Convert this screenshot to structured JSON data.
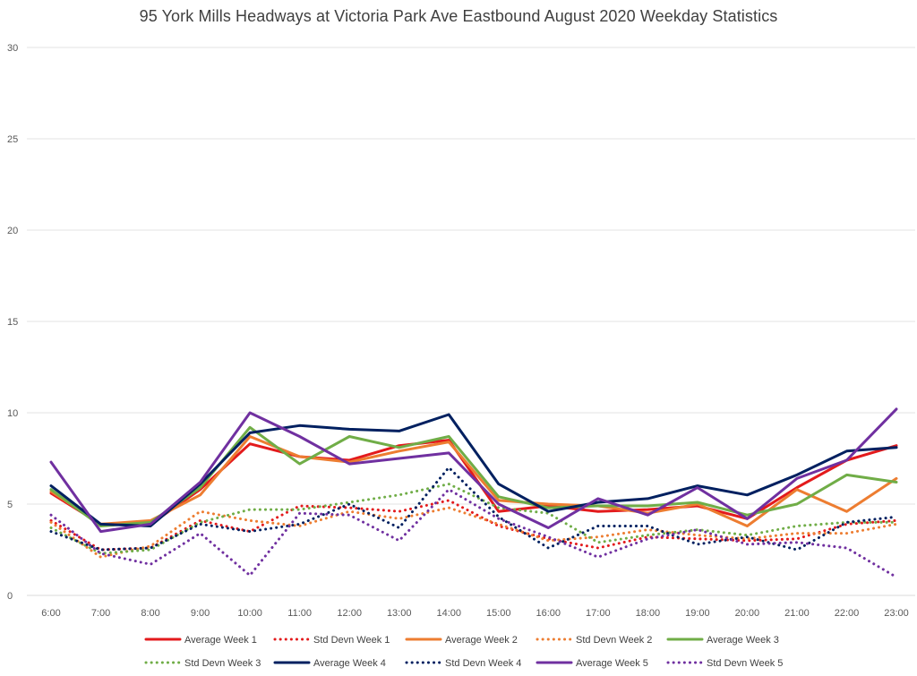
{
  "chart_data": {
    "type": "line",
    "title": "95 York Mills Headways at Victoria Park Ave Eastbound August 2020 Weekday Statistics",
    "xlabel": "",
    "ylabel": "",
    "ylim": [
      0,
      30
    ],
    "yticks": [
      0,
      5,
      10,
      15,
      20,
      25,
      30
    ],
    "grid": "horizontal",
    "legend_position": "bottom",
    "categories": [
      "6:00",
      "7:00",
      "8:00",
      "9:00",
      "10:00",
      "11:00",
      "12:00",
      "13:00",
      "14:00",
      "15:00",
      "16:00",
      "17:00",
      "18:00",
      "19:00",
      "20:00",
      "21:00",
      "22:00",
      "23:00"
    ],
    "series": [
      {
        "name": "Average Week 1",
        "color": "#e31a1c",
        "style": "solid",
        "values": [
          5.6,
          3.9,
          3.9,
          5.8,
          8.3,
          7.6,
          7.4,
          8.2,
          8.5,
          4.6,
          4.9,
          4.6,
          4.7,
          4.9,
          4.2,
          5.9,
          7.4,
          8.2
        ]
      },
      {
        "name": "Std Devn Week 1",
        "color": "#e31a1c",
        "style": "dotted",
        "values": [
          4.1,
          2.5,
          2.6,
          4.1,
          3.5,
          4.9,
          4.8,
          4.6,
          5.2,
          3.8,
          3.1,
          2.6,
          3.2,
          3.1,
          3.0,
          3.1,
          3.9,
          4.1
        ]
      },
      {
        "name": "Average Week 2",
        "color": "#ed7d31",
        "style": "solid",
        "values": [
          5.7,
          3.9,
          4.1,
          5.5,
          8.7,
          7.6,
          7.3,
          7.9,
          8.4,
          5.2,
          5.0,
          4.9,
          4.5,
          5.0,
          3.8,
          5.8,
          4.6,
          6.4
        ]
      },
      {
        "name": "Std Devn Week 2",
        "color": "#ed7d31",
        "style": "dotted",
        "values": [
          4.0,
          2.1,
          2.7,
          4.6,
          4.1,
          3.8,
          4.6,
          4.2,
          4.8,
          3.9,
          3.0,
          3.2,
          3.6,
          3.3,
          3.1,
          3.4,
          3.4,
          3.9
        ]
      },
      {
        "name": "Average Week 3",
        "color": "#70ad47",
        "style": "solid",
        "values": [
          5.8,
          3.8,
          4.0,
          5.9,
          9.2,
          7.2,
          8.7,
          8.1,
          8.7,
          5.4,
          4.8,
          4.9,
          4.9,
          5.1,
          4.4,
          5.0,
          6.6,
          6.2
        ]
      },
      {
        "name": "Std Devn Week 3",
        "color": "#70ad47",
        "style": "dotted",
        "values": [
          3.7,
          2.3,
          2.5,
          4.0,
          4.7,
          4.7,
          5.1,
          5.5,
          6.1,
          4.8,
          4.5,
          2.9,
          3.3,
          3.6,
          3.3,
          3.8,
          4.0,
          4.0
        ]
      },
      {
        "name": "Average Week 4",
        "color": "#002060",
        "style": "solid",
        "values": [
          6.0,
          3.9,
          3.8,
          6.1,
          8.9,
          9.3,
          9.1,
          9.0,
          9.9,
          6.1,
          4.6,
          5.1,
          5.3,
          6.0,
          5.5,
          6.6,
          7.9,
          8.1
        ]
      },
      {
        "name": "Std Devn Week 4",
        "color": "#002060",
        "style": "dotted",
        "values": [
          3.5,
          2.5,
          2.6,
          3.9,
          3.5,
          3.9,
          5.0,
          3.7,
          7.0,
          4.3,
          2.6,
          3.8,
          3.8,
          2.8,
          3.2,
          2.5,
          4.0,
          4.3
        ]
      },
      {
        "name": "Average Week 5",
        "color": "#7030a0",
        "style": "solid",
        "values": [
          7.3,
          3.5,
          3.9,
          6.2,
          10.0,
          8.7,
          7.2,
          7.5,
          7.8,
          5.0,
          3.7,
          5.3,
          4.4,
          5.9,
          4.2,
          6.4,
          7.4,
          10.2
        ]
      },
      {
        "name": "Std Devn Week 5",
        "color": "#7030a0",
        "style": "dotted",
        "values": [
          4.4,
          2.3,
          1.7,
          3.4,
          1.1,
          4.5,
          4.4,
          3.0,
          5.8,
          4.2,
          3.2,
          2.1,
          3.1,
          3.6,
          2.8,
          2.9,
          2.6,
          1.0
        ]
      }
    ]
  }
}
